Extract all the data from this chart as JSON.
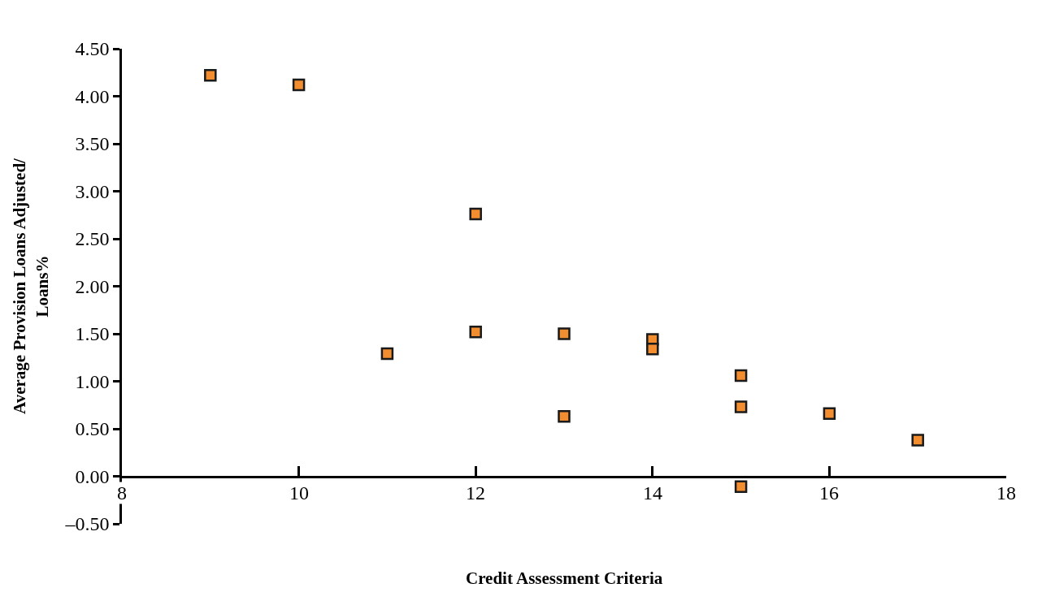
{
  "chart_data": {
    "type": "scatter",
    "xlabel": "Credit Assessment Criteria",
    "ylabel": "Average Provision Loans Adjusted/\nLoans%",
    "x": [
      9,
      10,
      12,
      11,
      12,
      13,
      14,
      14,
      15,
      13,
      15,
      16,
      17,
      15
    ],
    "series": [
      {
        "color": "#f28e30",
        "values": [
          4.22,
          4.12,
          2.76,
          1.29,
          1.52,
          1.5,
          1.44,
          1.34,
          1.06,
          0.63,
          0.73,
          0.66,
          0.38,
          -0.11
        ]
      }
    ],
    "marker": "square",
    "xlim": [
      8,
      18
    ],
    "xticks": [
      8,
      10,
      12,
      14,
      16,
      18
    ],
    "ylim": [
      -0.5,
      4.5
    ],
    "yticks": [
      {
        "value": -0.5,
        "label": "–0.50"
      },
      {
        "value": 0,
        "label": "0.00"
      },
      {
        "value": 0.5,
        "label": "0.50"
      },
      {
        "value": 1,
        "label": "1.00"
      },
      {
        "value": 1.5,
        "label": "1.50"
      },
      {
        "value": 2,
        "label": "2.00"
      },
      {
        "value": 2.5,
        "label": "2.50"
      },
      {
        "value": 3,
        "label": "3.00"
      },
      {
        "value": 3.5,
        "label": "3.50"
      },
      {
        "value": 4,
        "label": "4.00"
      },
      {
        "value": 4.5,
        "label": "4.50"
      }
    ]
  }
}
